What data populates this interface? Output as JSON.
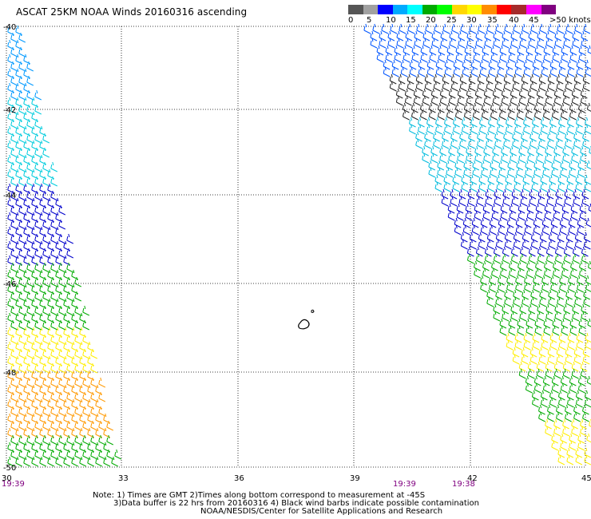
{
  "title": "ASCAT 25KM NOAA Winds 20160316 ascending",
  "legend": {
    "colors": [
      "#555555",
      "#a0a0a0",
      "#0000ff",
      "#00aaff",
      "#00ffff",
      "#00aa00",
      "#00ff00",
      "#ffd700",
      "#ffff00",
      "#ff8c00",
      "#ff0000",
      "#a52a2a",
      "#ff00ff",
      "#800080"
    ],
    "labels": [
      "0",
      "5",
      "10",
      "15",
      "20",
      "25",
      "30",
      "35",
      "40",
      "45",
      ">50 knots"
    ]
  },
  "map": {
    "lat_labels": [
      "-40",
      "-42",
      "-44",
      "-46",
      "-48",
      "-50"
    ],
    "lon_labels": [
      "30",
      "33",
      "36",
      "39",
      "42",
      "45"
    ],
    "time_labels": [
      "19:39",
      "19:39",
      "19:38"
    ]
  },
  "notes": {
    "line1": "Note: 1) Times are GMT 2)Times along bottom correspond to measurement at -45S",
    "line2": "3)Data buffer is 22 hrs from 20160316 4) Black wind barbs indicate possible contamination",
    "line3": "NOAA/NESDIS/Center for Satellite Applications and Research"
  }
}
